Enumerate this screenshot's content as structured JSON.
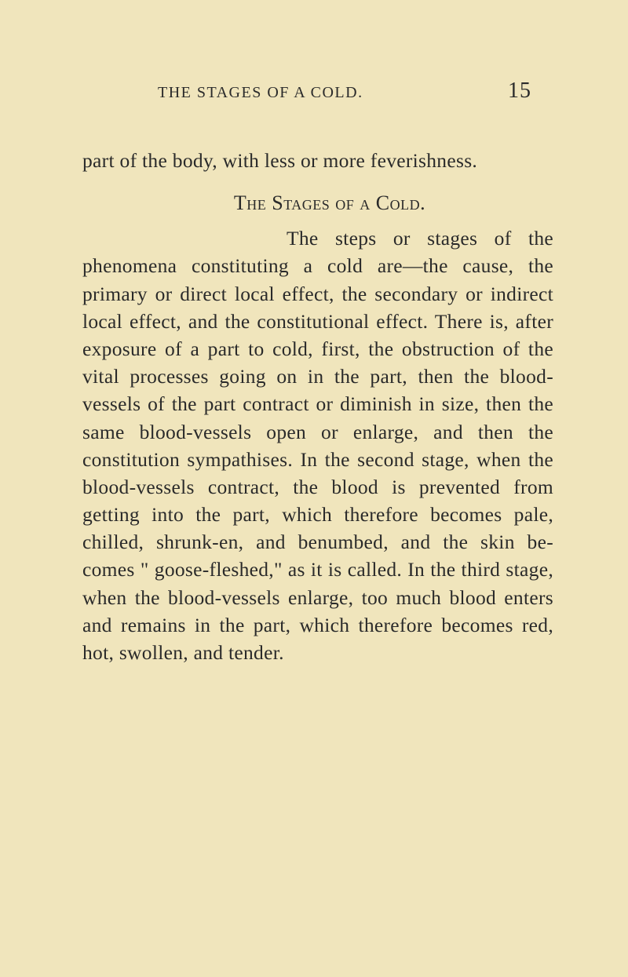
{
  "page": {
    "running_title": "THE STAGES OF A COLD.",
    "page_number": "15",
    "background_color": "#f0e5bc",
    "text_color": "#2a2a2a",
    "body_fontsize": 25.5,
    "line_height": 1.38
  },
  "content": {
    "paragraph1": "part of the body, with less or more feverishness.",
    "section_heading": "The Stages of a Cold.",
    "paragraph2_opening": "The steps or stages",
    "paragraph2_body": " of the phenomena constituting a cold are—the cause, the primary or direct local effect, the secondary or indirect local effect, and the constitutional effect. There is, after exposure of a part to cold, first, the obstruction of the vital processes going on in the part, then the blood-vessels of the part contract or diminish in size, then the same blood-vessels open or enlarge, and then the constitution sympathises. In the second stage, when the blood-vessels contract, the blood is prevented from getting into the part, which therefore becomes pale, chilled, shrunk-en, and benumbed, and the skin be-comes \" goose-fleshed,\" as it is called. In the third stage, when the blood-vessels enlarge, too much blood enters and remains in the part, which therefore becomes red, hot, swollen, and tender."
  }
}
